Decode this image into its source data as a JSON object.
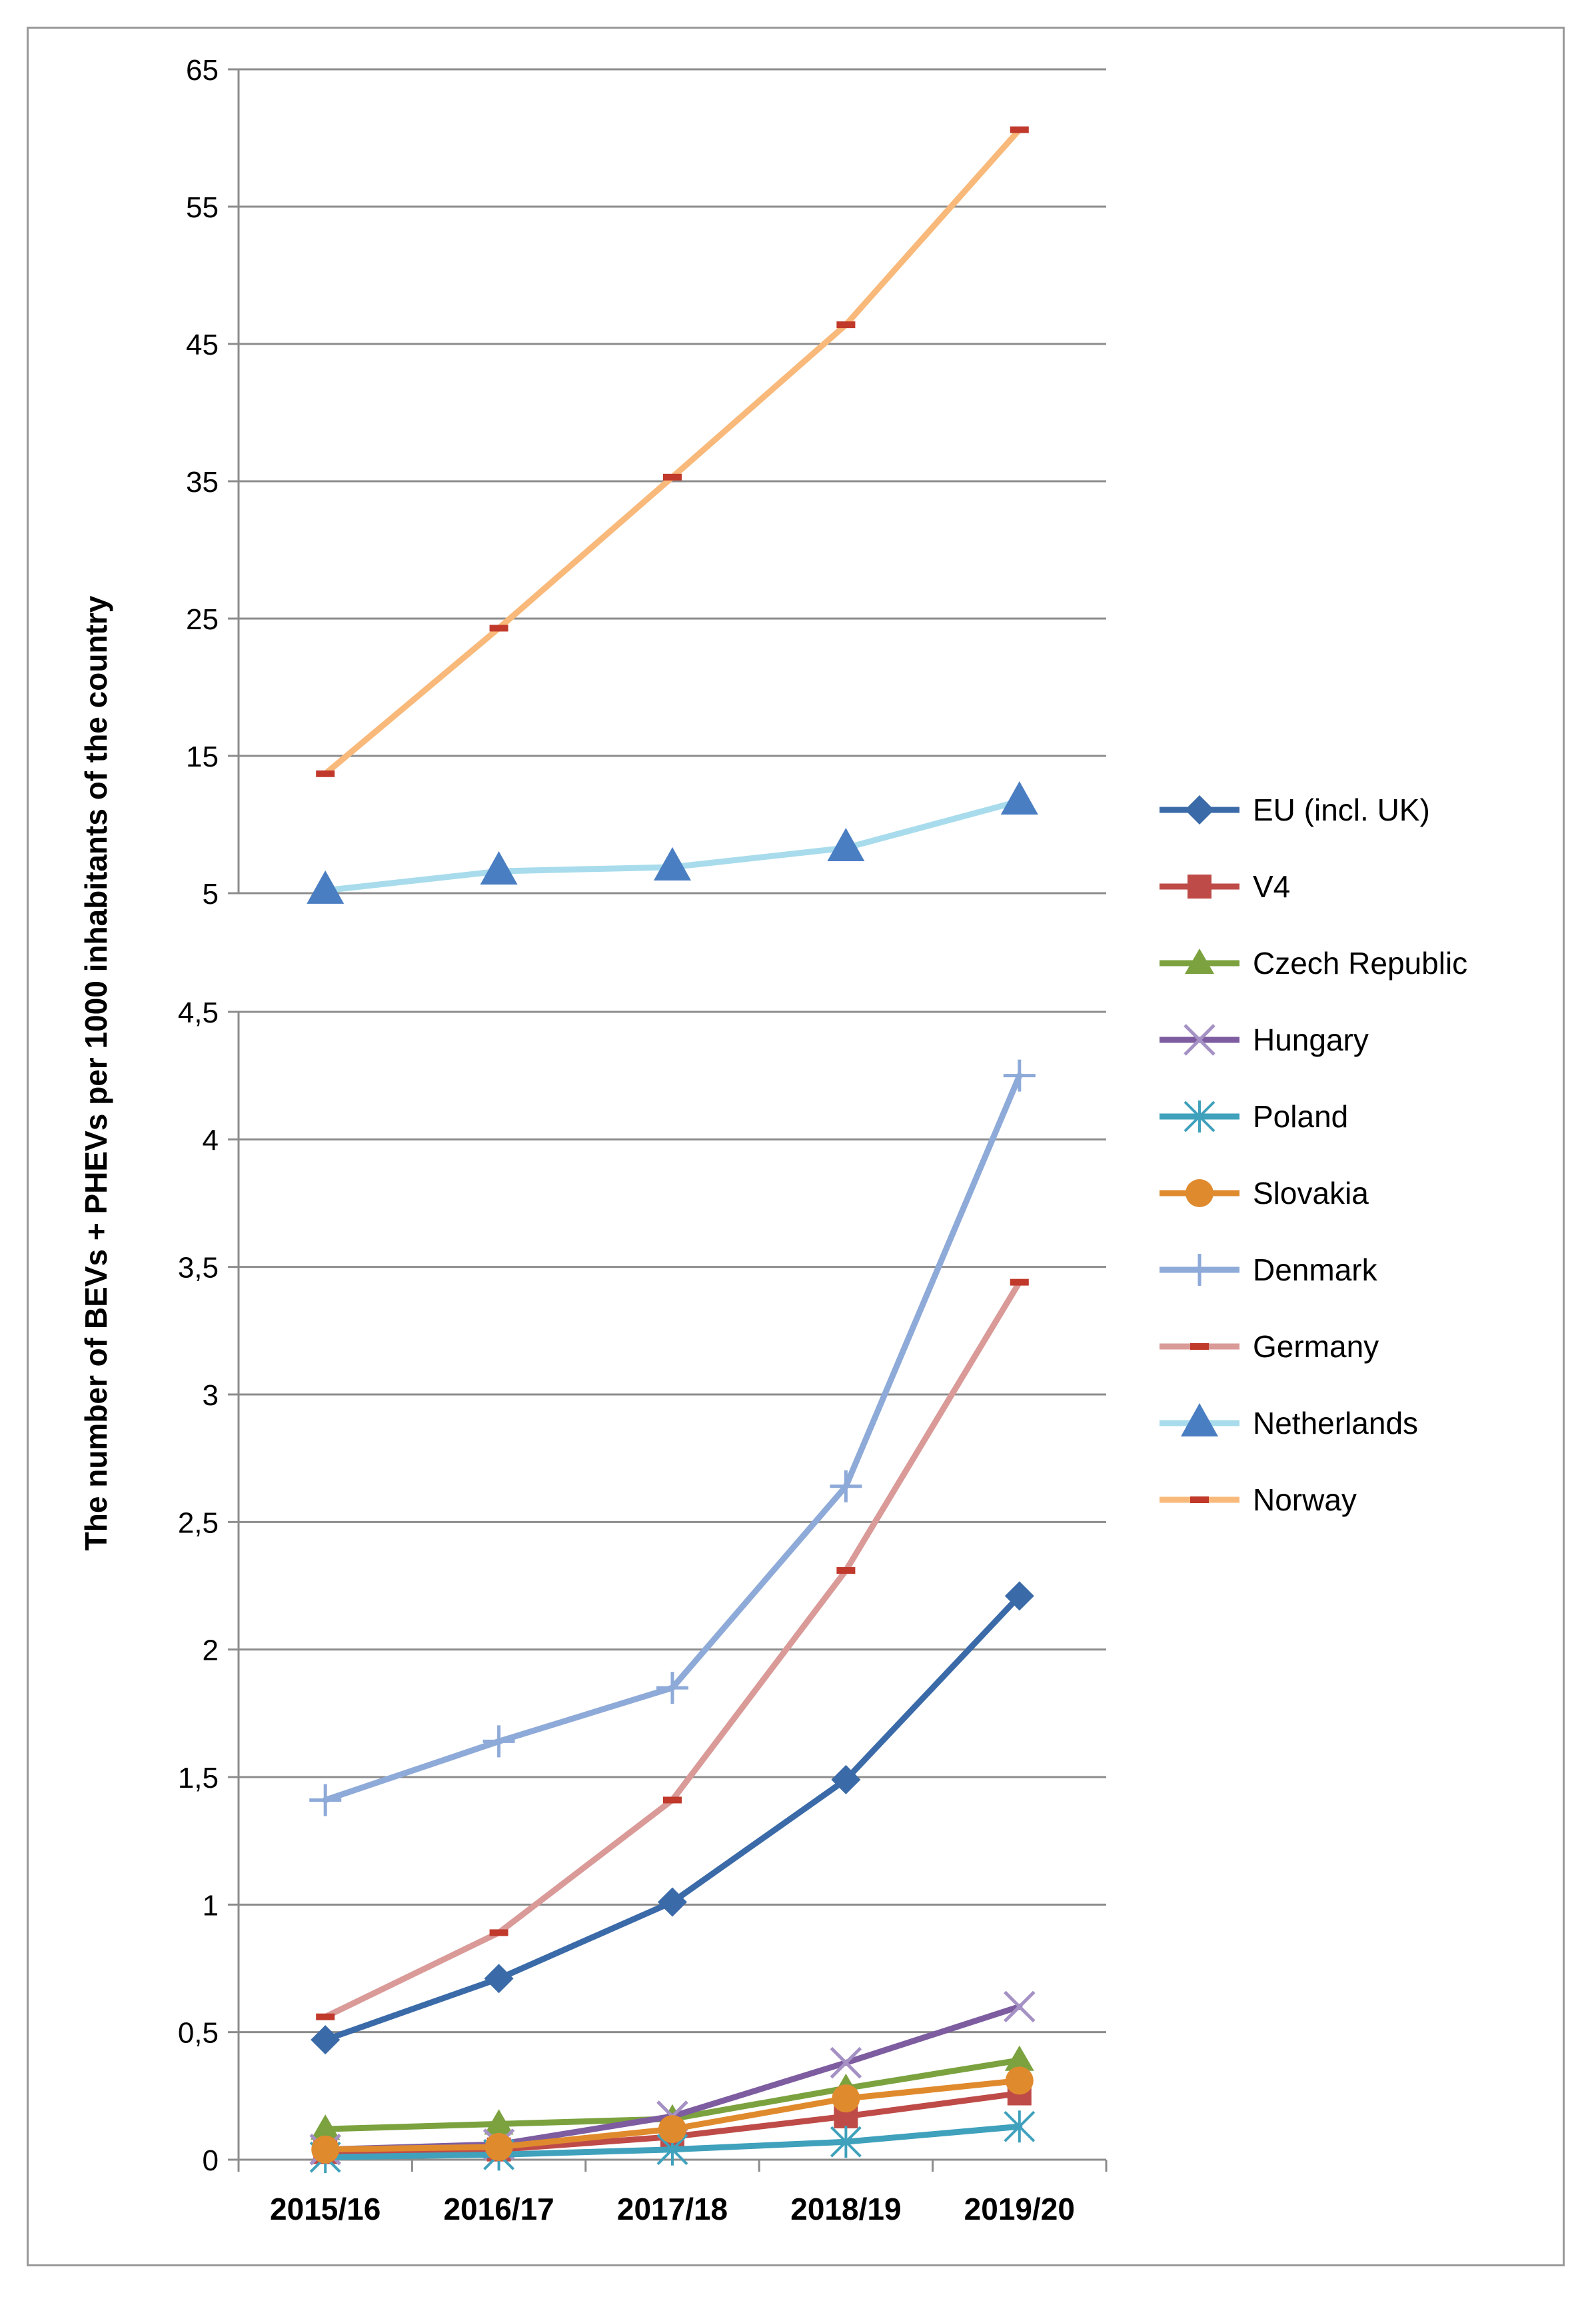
{
  "chart_data": {
    "type": "line",
    "ylabel": "The number of BEVs + PHEVs per 1000 inhabitants of the country",
    "categories": [
      "2015/16",
      "2016/17",
      "2017/18",
      "2018/19",
      "2019/20"
    ],
    "panels": {
      "upper": {
        "ylim": [
          5,
          65
        ],
        "ticks": [
          "5",
          "15",
          "25",
          "35",
          "45",
          "55",
          "65"
        ]
      },
      "lower": {
        "ylim": [
          0,
          4.5
        ],
        "ticks": [
          "0",
          "0,5",
          "1",
          "1,5",
          "2",
          "2,5",
          "3",
          "3,5",
          "4",
          "4,5"
        ]
      }
    },
    "series": [
      {
        "name": "EU (incl. UK)",
        "panel": "lower",
        "color": "#3a6aa8",
        "marker": "diamond",
        "width": 9,
        "values": [
          0.47,
          0.71,
          1.01,
          1.49,
          2.21
        ]
      },
      {
        "name": "V4",
        "panel": "lower",
        "color": "#be4b48",
        "marker": "square",
        "width": 9,
        "values": [
          0.03,
          0.04,
          0.09,
          0.17,
          0.26
        ]
      },
      {
        "name": "Czech Republic",
        "panel": "lower",
        "color": "#7ba23f",
        "marker": "triangle",
        "width": 9,
        "values": [
          0.12,
          0.14,
          0.16,
          0.28,
          0.39
        ]
      },
      {
        "name": "Hungary",
        "panel": "lower",
        "color": "#7d5ca0",
        "marker": "x",
        "width": 9,
        "values": [
          0.04,
          0.06,
          0.17,
          0.38,
          0.6
        ]
      },
      {
        "name": "Poland",
        "panel": "lower",
        "color": "#3fa1bc",
        "marker": "star",
        "width": 9,
        "values": [
          0.01,
          0.02,
          0.04,
          0.07,
          0.13
        ]
      },
      {
        "name": "Slovakia",
        "panel": "lower",
        "color": "#e08a2e",
        "marker": "circle",
        "width": 9,
        "values": [
          0.04,
          0.05,
          0.12,
          0.24,
          0.31
        ]
      },
      {
        "name": "Denmark",
        "panel": "lower",
        "color": "#8eaad8",
        "marker": "plus",
        "width": 9,
        "values": [
          1.41,
          1.64,
          1.85,
          2.64,
          4.25
        ]
      },
      {
        "name": "Germany",
        "panel": "lower",
        "color": "#d99a98",
        "marker": "dash",
        "width": 9,
        "values": [
          0.56,
          0.89,
          1.41,
          2.31,
          3.44
        ]
      },
      {
        "name": "Netherlands",
        "panel": "upper",
        "color": "#a8dcec",
        "marker": "triangle-blue",
        "width": 9,
        "values": [
          5.2,
          6.6,
          6.9,
          8.3,
          11.7
        ]
      },
      {
        "name": "Norway",
        "panel": "upper",
        "color": "#f8b97a",
        "marker": "dash",
        "width": 9,
        "values": [
          13.7,
          24.3,
          35.3,
          46.4,
          60.6
        ]
      }
    ]
  }
}
